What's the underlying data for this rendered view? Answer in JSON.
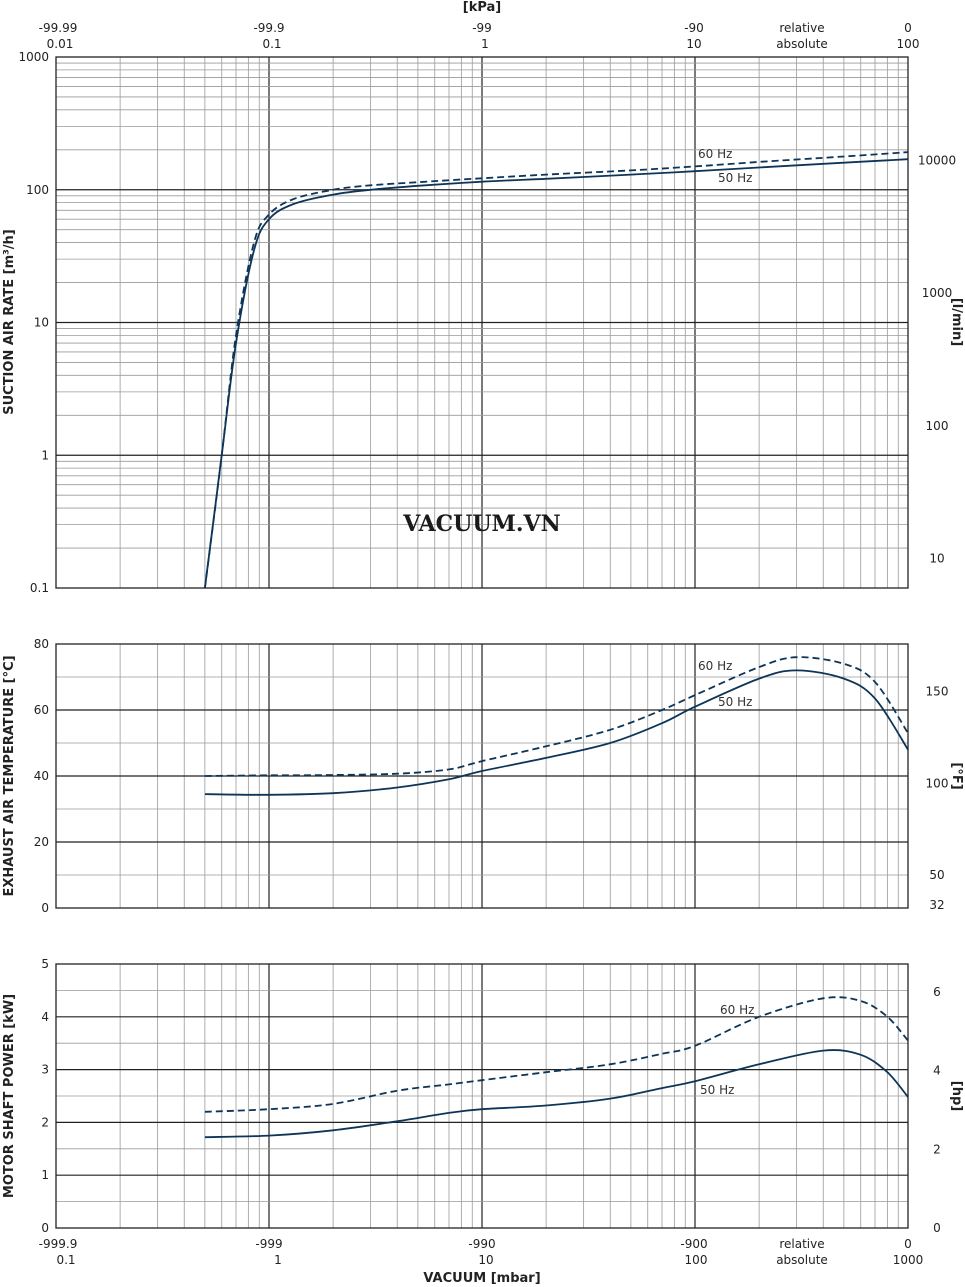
{
  "watermark": "VACUUM.VN",
  "top_axis": {
    "unit_label": "[kPa]",
    "relative_ticks": [
      "-99.99",
      "-99.9",
      "-99",
      "-90",
      "relative",
      "0"
    ],
    "absolute_ticks": [
      "0.01",
      "0.1",
      "1",
      "10",
      "absolute",
      "100"
    ]
  },
  "bottom_axis": {
    "title": "VACUUM  [mbar]",
    "relative_ticks": [
      "-999.9",
      "-999",
      "-990",
      "-900",
      "relative",
      "0"
    ],
    "absolute_ticks": [
      "0.1",
      "1",
      "10",
      "100",
      "absolute",
      "1000"
    ]
  },
  "colors": {
    "curve": "#0d3558",
    "grid_major": "#222222",
    "grid_minor": "#9a9a9a"
  },
  "chart_data": [
    {
      "type": "line",
      "name": "suction",
      "x_scale": "log",
      "xlim": [
        0.1,
        1000
      ],
      "y_scale": "log",
      "ylim": [
        0.1,
        1000
      ],
      "ylabel_left": "SUCTION AIR RATE  [m³/h]",
      "ylabel_right": "[l/min]",
      "y_ticks": [
        "0.1",
        "1",
        "10",
        "100",
        "1000"
      ],
      "y2_ticks": [
        "10",
        "100",
        "1000",
        "10000"
      ],
      "series": [
        {
          "name": "60 Hz",
          "dash": true,
          "points": [
            [
              0.5,
              0.1
            ],
            [
              0.6,
              1
            ],
            [
              0.7,
              8
            ],
            [
              0.85,
              40
            ],
            [
              1.0,
              65
            ],
            [
              1.3,
              85
            ],
            [
              2,
              100
            ],
            [
              3,
              108
            ],
            [
              5,
              114
            ],
            [
              10,
              122
            ],
            [
              20,
              130
            ],
            [
              50,
              140
            ],
            [
              100,
              150
            ],
            [
              200,
              162
            ],
            [
              500,
              178
            ],
            [
              1000,
              192
            ]
          ]
        },
        {
          "name": "50 Hz",
          "dash": false,
          "points": [
            [
              0.5,
              0.1
            ],
            [
              0.6,
              1
            ],
            [
              0.7,
              7
            ],
            [
              0.85,
              35
            ],
            [
              1.0,
              60
            ],
            [
              1.3,
              78
            ],
            [
              2,
              92
            ],
            [
              3,
              100
            ],
            [
              5,
              107
            ],
            [
              10,
              115
            ],
            [
              20,
              121
            ],
            [
              50,
              130
            ],
            [
              100,
              138
            ],
            [
              200,
              147
            ],
            [
              500,
              160
            ],
            [
              1000,
              170
            ]
          ]
        }
      ]
    },
    {
      "type": "line",
      "name": "temperature",
      "x_scale": "log",
      "xlim": [
        0.1,
        1000
      ],
      "y_scale": "linear",
      "ylim": [
        0,
        80
      ],
      "ylabel_left": "EXHAUST AIR TEMPERATURE  [°C]",
      "ylabel_right": "[°F]",
      "y_ticks": [
        "0",
        "20",
        "40",
        "60",
        "80"
      ],
      "y2_ticks": [
        "32",
        "50",
        "100",
        "150"
      ],
      "series": [
        {
          "name": "60 Hz",
          "dash": true,
          "points": [
            [
              0.5,
              40
            ],
            [
              1,
              40.2
            ],
            [
              2,
              40.3
            ],
            [
              4,
              40.7
            ],
            [
              7,
              42
            ],
            [
              10,
              44.5
            ],
            [
              20,
              49
            ],
            [
              40,
              54
            ],
            [
              70,
              60
            ],
            [
              100,
              64.5
            ],
            [
              200,
              73
            ],
            [
              300,
              76
            ],
            [
              500,
              74
            ],
            [
              700,
              68.5
            ],
            [
              1000,
              53
            ]
          ]
        },
        {
          "name": "50 Hz",
          "dash": false,
          "points": [
            [
              0.5,
              34.5
            ],
            [
              1,
              34.3
            ],
            [
              2,
              34.8
            ],
            [
              4,
              36.5
            ],
            [
              7,
              39
            ],
            [
              10,
              41.5
            ],
            [
              20,
              45.5
            ],
            [
              40,
              50
            ],
            [
              70,
              56
            ],
            [
              100,
              61
            ],
            [
              200,
              69.5
            ],
            [
              300,
              72
            ],
            [
              500,
              69.5
            ],
            [
              700,
              63.5
            ],
            [
              1000,
              48
            ]
          ]
        }
      ]
    },
    {
      "type": "line",
      "name": "power",
      "x_scale": "log",
      "xlim": [
        0.1,
        1000
      ],
      "y_scale": "linear",
      "ylim": [
        0,
        5
      ],
      "ylabel_left": "MOTOR SHAFT POWER  [kW]",
      "ylabel_right": "[hp]",
      "y_ticks": [
        "0",
        "1",
        "2",
        "3",
        "4",
        "5"
      ],
      "y2_ticks": [
        "0",
        "2",
        "4",
        "6"
      ],
      "series": [
        {
          "name": "60 Hz",
          "dash": true,
          "points": [
            [
              0.5,
              2.2
            ],
            [
              1,
              2.25
            ],
            [
              2,
              2.35
            ],
            [
              4,
              2.6
            ],
            [
              7,
              2.72
            ],
            [
              10,
              2.8
            ],
            [
              20,
              2.95
            ],
            [
              40,
              3.1
            ],
            [
              70,
              3.3
            ],
            [
              100,
              3.45
            ],
            [
              200,
              4.0
            ],
            [
              400,
              4.35
            ],
            [
              600,
              4.3
            ],
            [
              800,
              4.0
            ],
            [
              1000,
              3.55
            ]
          ]
        },
        {
          "name": "50 Hz",
          "dash": false,
          "points": [
            [
              0.5,
              1.72
            ],
            [
              1,
              1.75
            ],
            [
              2,
              1.85
            ],
            [
              4,
              2.02
            ],
            [
              7,
              2.18
            ],
            [
              10,
              2.25
            ],
            [
              20,
              2.32
            ],
            [
              40,
              2.45
            ],
            [
              70,
              2.65
            ],
            [
              100,
              2.78
            ],
            [
              200,
              3.1
            ],
            [
              400,
              3.36
            ],
            [
              600,
              3.28
            ],
            [
              800,
              2.95
            ],
            [
              1000,
              2.48
            ]
          ]
        }
      ]
    }
  ]
}
